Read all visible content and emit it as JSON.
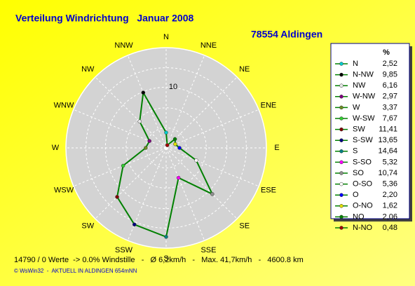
{
  "chart_data": {
    "type": "radar",
    "title": "Verteilung Windrichtung   Januar 2008",
    "subtitle": "78554 Aldingen",
    "directions": [
      "N",
      "NNE",
      "NE",
      "ENE",
      "E",
      "ESE",
      "SE",
      "SSE",
      "S",
      "SSW",
      "SW",
      "WSW",
      "W",
      "WNW",
      "NW",
      "NNW"
    ],
    "legend_header": "%",
    "categories": [
      "N",
      "N-NW",
      "NW",
      "W-NW",
      "W",
      "W-SW",
      "SW",
      "S-SW",
      "S",
      "S-SO",
      "SO",
      "O-SO",
      "O",
      "O-NO",
      "NO",
      "N-NO"
    ],
    "values": [
      2.52,
      9.85,
      6.16,
      2.97,
      3.37,
      7.67,
      11.41,
      13.65,
      14.64,
      5.32,
      10.74,
      5.36,
      2.2,
      1.62,
      2.06,
      0.48
    ],
    "value_labels": [
      "2,52",
      "9,85",
      "6,16",
      "2,97",
      "3,37",
      "7,67",
      "11,41",
      "13,65",
      "14,64",
      "5,32",
      "10,74",
      "5,36",
      "2,20",
      "1,62",
      "2,06",
      "0,48"
    ],
    "colors": [
      "#00cccc",
      "#000000",
      "#e8e8e8",
      "#800080",
      "#6b8e23",
      "#33cc33",
      "#800000",
      "#000080",
      "#008080",
      "#ff00ff",
      "#909090",
      "#ffffff",
      "#0000ff",
      "#e0e000",
      "#008000",
      "#a00000"
    ],
    "line_color": "#008000",
    "rlim": [
      0,
      16.5
    ],
    "rticks": [
      10
    ]
  },
  "footer": [
    "14790 / 0 Werte  -> 0.0% Windstille   -   Ø 6,2km/h   -   Max. 41,7km/h   -   4600.8 km",
    "© WsWin32  -  AKTUELL IN ALDINGEN 654mNN"
  ]
}
